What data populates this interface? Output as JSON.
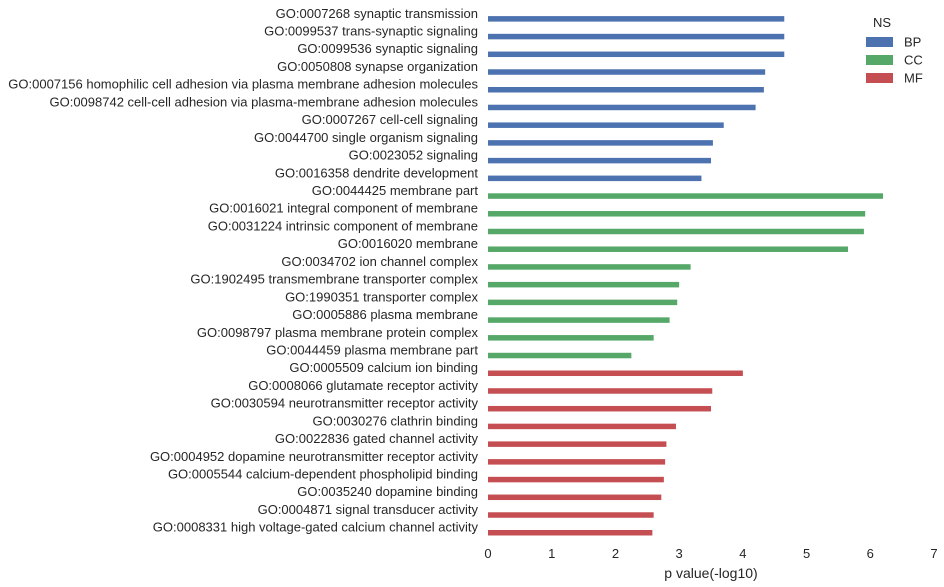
{
  "chart_data": {
    "type": "bar",
    "orientation": "horizontal",
    "xlabel": "p value(-log10)",
    "xlim": [
      0,
      7
    ],
    "xticks": [
      0,
      1,
      2,
      3,
      4,
      5,
      6,
      7
    ],
    "grid": false,
    "legend": {
      "title": "NS",
      "placement": "top-right",
      "entries": [
        {
          "name": "BP",
          "color": "#4c72b0"
        },
        {
          "name": "CC",
          "color": "#55a868"
        },
        {
          "name": "MF",
          "color": "#c44e52"
        }
      ]
    },
    "categories": [
      "GO:0007268 synaptic transmission",
      "GO:0099537 trans-synaptic signaling",
      "GO:0099536 synaptic signaling",
      "GO:0050808 synapse organization",
      "GO:0007156 homophilic cell adhesion via plasma membrane adhesion molecules",
      "GO:0098742 cell-cell adhesion via plasma-membrane adhesion molecules",
      "GO:0007267 cell-cell signaling",
      "GO:0044700 single organism signaling",
      "GO:0023052 signaling",
      "GO:0016358 dendrite development",
      "GO:0044425 membrane part",
      "GO:0016021 integral component of membrane",
      "GO:0031224 intrinsic component of membrane",
      "GO:0016020 membrane",
      "GO:0034702 ion channel complex",
      "GO:1902495 transmembrane transporter complex",
      "GO:1990351 transporter complex",
      "GO:0005886 plasma membrane",
      "GO:0098797 plasma membrane protein complex",
      "GO:0044459 plasma membrane part",
      "GO:0005509 calcium ion binding",
      "GO:0008066 glutamate receptor activity",
      "GO:0030594 neurotransmitter receptor activity",
      "GO:0030276 clathrin binding",
      "GO:0022836 gated channel activity",
      "GO:0004952 dopamine neurotransmitter receptor activity",
      "GO:0005544 calcium-dependent phospholipid binding",
      "GO:0035240 dopamine binding",
      "GO:0004871 signal transducer activity",
      "GO:0008331 high voltage-gated calcium channel activity"
    ],
    "values": [
      4.65,
      4.65,
      4.65,
      4.35,
      4.33,
      4.2,
      3.7,
      3.53,
      3.5,
      3.35,
      6.2,
      5.92,
      5.9,
      5.65,
      3.18,
      3.0,
      2.97,
      2.85,
      2.6,
      2.25,
      4.0,
      3.52,
      3.5,
      2.95,
      2.8,
      2.78,
      2.76,
      2.72,
      2.6,
      2.58
    ],
    "groups": [
      "BP",
      "BP",
      "BP",
      "BP",
      "BP",
      "BP",
      "BP",
      "BP",
      "BP",
      "BP",
      "CC",
      "CC",
      "CC",
      "CC",
      "CC",
      "CC",
      "CC",
      "CC",
      "CC",
      "CC",
      "MF",
      "MF",
      "MF",
      "MF",
      "MF",
      "MF",
      "MF",
      "MF",
      "MF",
      "MF"
    ]
  }
}
